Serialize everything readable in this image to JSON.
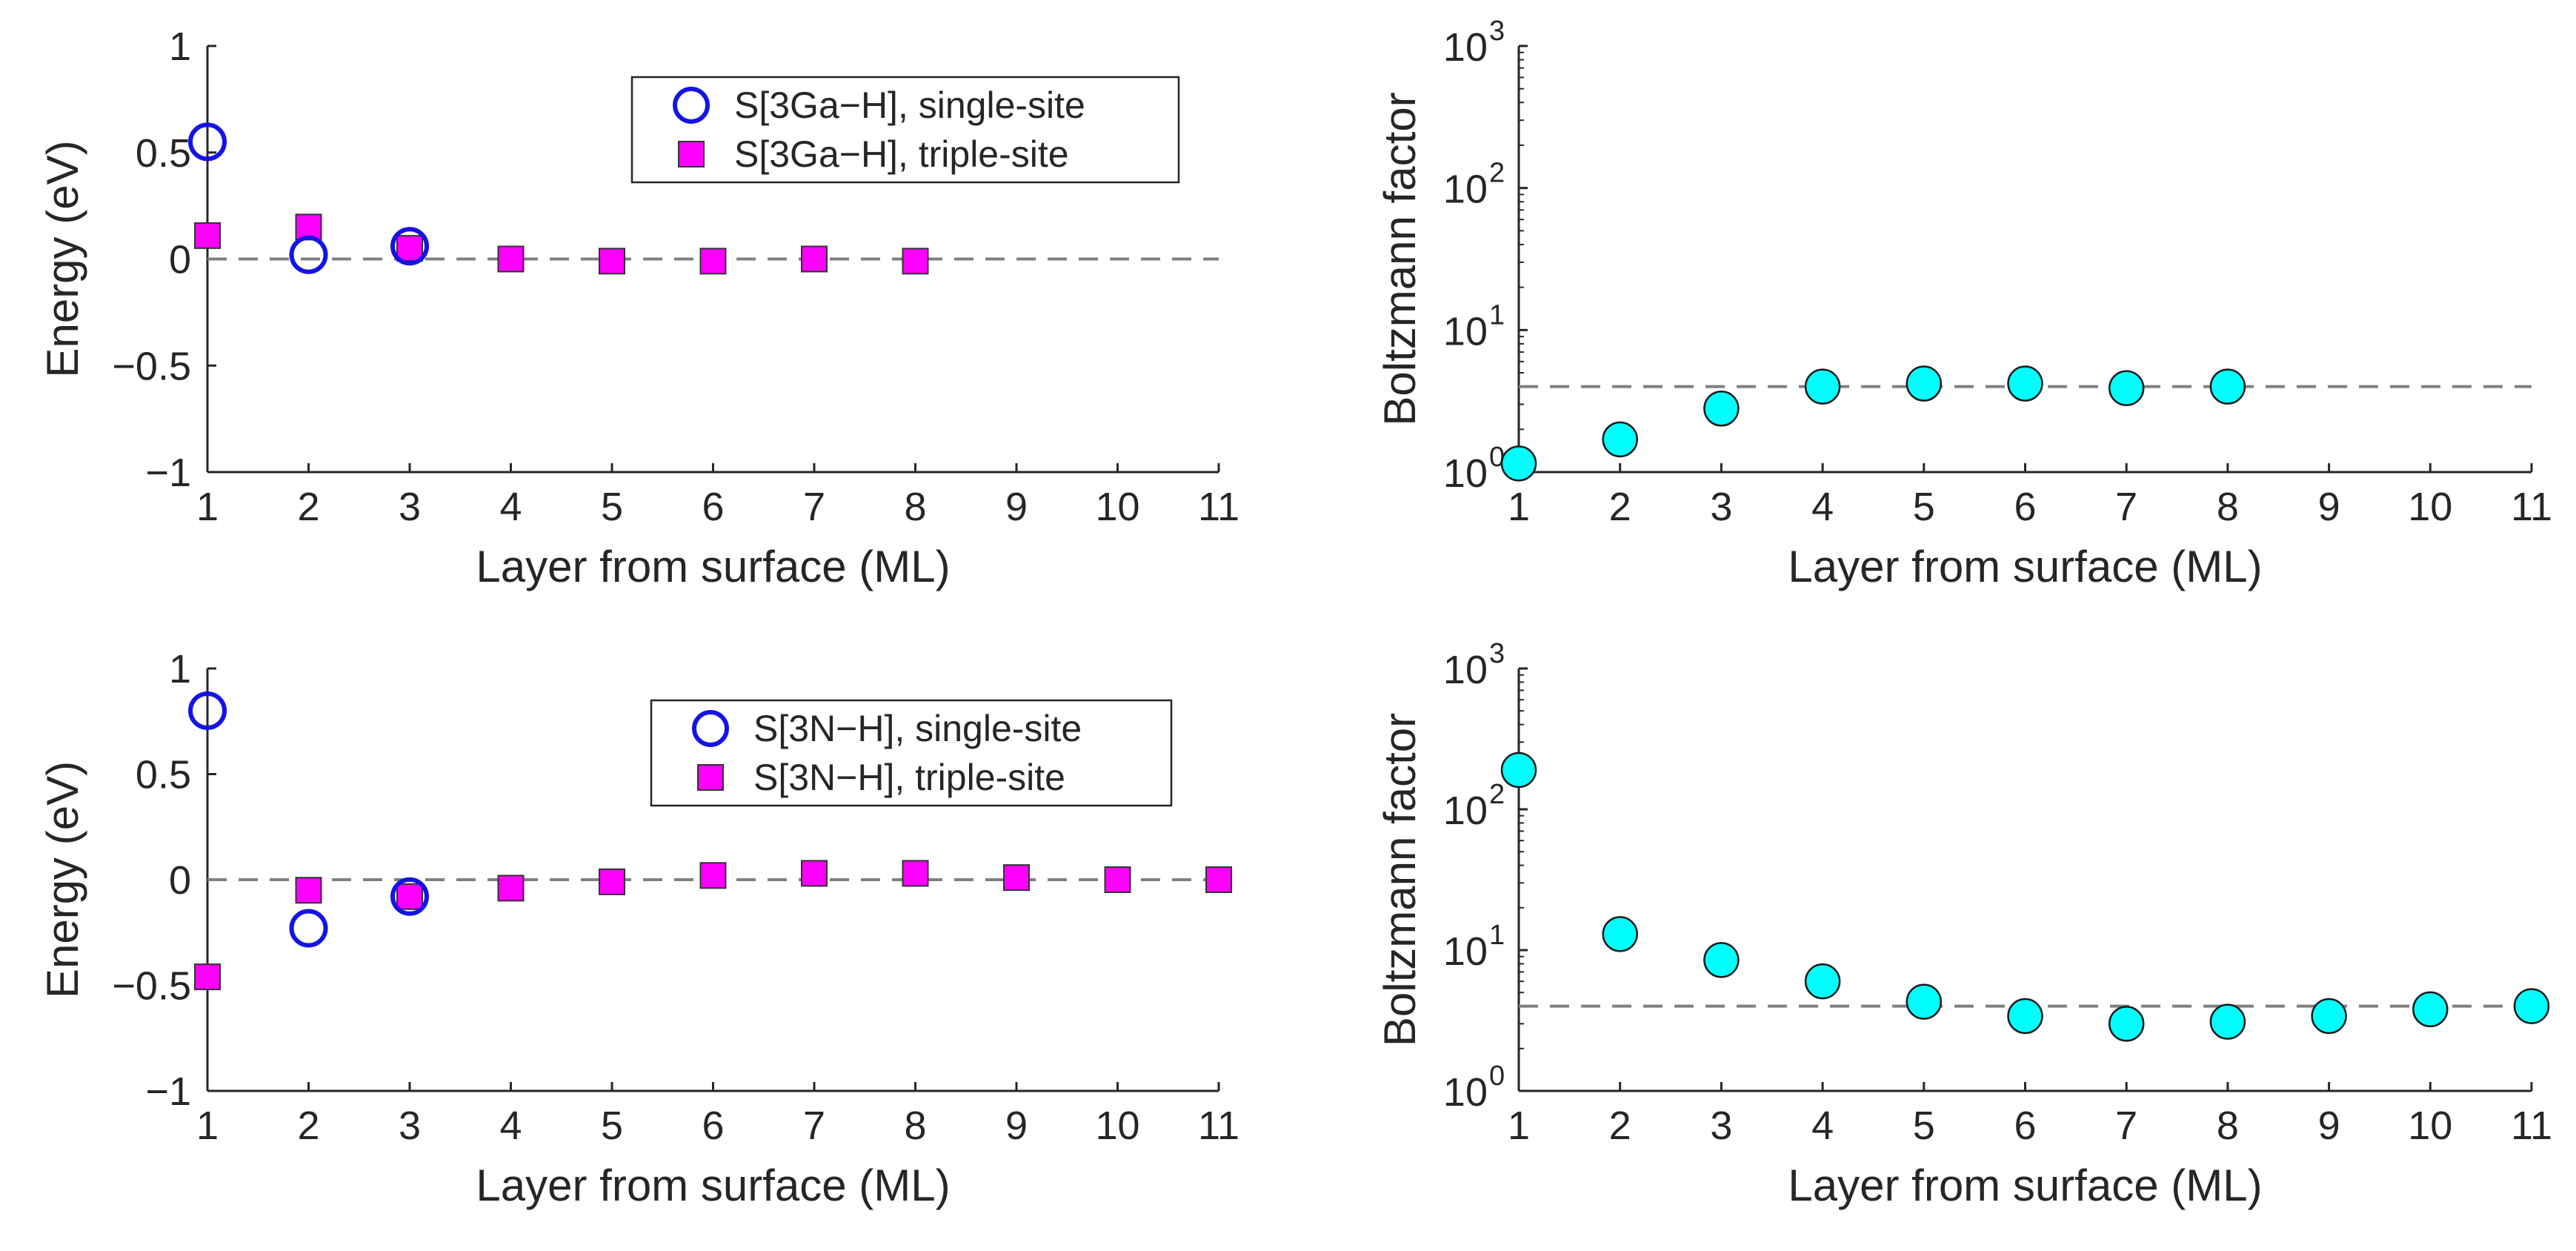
{
  "chart_data": [
    {
      "id": "top-left",
      "type": "scatter",
      "xlabel": "Layer from surface (ML)",
      "ylabel": "Energy (eV)",
      "xlim": [
        1,
        11
      ],
      "ylim": [
        -1,
        1
      ],
      "xticks": [
        "1",
        "2",
        "3",
        "4",
        "5",
        "6",
        "7",
        "8",
        "9",
        "10",
        "11"
      ],
      "yticks": [
        {
          "value": -1,
          "label": "−1"
        },
        {
          "value": -0.5,
          "label": "−0.5"
        },
        {
          "value": 0,
          "label": "0"
        },
        {
          "value": 0.5,
          "label": "0.5"
        },
        {
          "value": 1,
          "label": "1"
        }
      ],
      "reference_line": {
        "value": 0,
        "color": "#808080"
      },
      "legend_position": "top-right",
      "series": [
        {
          "name": "S[3Ga−H], single-site",
          "marker": "open-circle",
          "color": "#1414E6",
          "x": [
            1,
            2,
            3
          ],
          "y": [
            0.55,
            0.02,
            0.06
          ]
        },
        {
          "name": "S[3Ga−H], triple-site",
          "marker": "filled-square",
          "color": "#FF00FF",
          "x": [
            1,
            2,
            3,
            4,
            5,
            6,
            7,
            8
          ],
          "y": [
            0.11,
            0.15,
            0.05,
            0.0,
            -0.01,
            -0.01,
            0.0,
            -0.01
          ]
        }
      ]
    },
    {
      "id": "top-right",
      "type": "scatter",
      "scale": "log",
      "xlabel": "Layer from surface (ML)",
      "ylabel": "Boltzmann factor",
      "xlim": [
        1,
        11
      ],
      "ylim": [
        1,
        1000
      ],
      "xticks": [
        "1",
        "2",
        "3",
        "4",
        "5",
        "6",
        "7",
        "8",
        "9",
        "10",
        "11"
      ],
      "yticks": [
        {
          "value": 1,
          "base": "10",
          "exp": "0"
        },
        {
          "value": 10,
          "base": "10",
          "exp": "1"
        },
        {
          "value": 100,
          "base": "10",
          "exp": "2"
        },
        {
          "value": 1000,
          "base": "10",
          "exp": "3"
        }
      ],
      "reference_line": {
        "value": 4.0,
        "color": "#808080"
      },
      "series": [
        {
          "name": "Boltzmann factor",
          "marker": "filled-circle",
          "color": "#00FFFF",
          "x": [
            1,
            2,
            3,
            4,
            5,
            6,
            7,
            8
          ],
          "y": [
            1.15,
            1.7,
            2.8,
            4.0,
            4.2,
            4.2,
            3.9,
            4.0
          ]
        }
      ]
    },
    {
      "id": "bottom-left",
      "type": "scatter",
      "xlabel": "Layer from surface (ML)",
      "ylabel": "Energy (eV)",
      "xlim": [
        1,
        11
      ],
      "ylim": [
        -1,
        1
      ],
      "xticks": [
        "1",
        "2",
        "3",
        "4",
        "5",
        "6",
        "7",
        "8",
        "9",
        "10",
        "11"
      ],
      "yticks": [
        {
          "value": -1,
          "label": "−1"
        },
        {
          "value": -0.5,
          "label": "−0.5"
        },
        {
          "value": 0,
          "label": "0"
        },
        {
          "value": 0.5,
          "label": "0.5"
        },
        {
          "value": 1,
          "label": "1"
        }
      ],
      "reference_line": {
        "value": 0,
        "color": "#808080"
      },
      "legend_position": "top-right",
      "series": [
        {
          "name": "S[3N−H], single-site",
          "marker": "open-circle",
          "color": "#1414E6",
          "x": [
            1,
            2,
            3
          ],
          "y": [
            0.8,
            -0.23,
            -0.08
          ]
        },
        {
          "name": "S[3N−H], triple-site",
          "marker": "filled-square",
          "color": "#FF00FF",
          "x": [
            1,
            2,
            3,
            4,
            5,
            6,
            7,
            8,
            9,
            10,
            11
          ],
          "y": [
            -0.46,
            -0.05,
            -0.08,
            -0.04,
            -0.01,
            0.02,
            0.03,
            0.03,
            0.01,
            0.0,
            0.0
          ]
        }
      ]
    },
    {
      "id": "bottom-right",
      "type": "scatter",
      "scale": "log",
      "xlabel": "Layer from surface (ML)",
      "ylabel": "Boltzmann factor",
      "xlim": [
        1,
        11
      ],
      "ylim": [
        1,
        1000
      ],
      "xticks": [
        "1",
        "2",
        "3",
        "4",
        "5",
        "6",
        "7",
        "8",
        "9",
        "10",
        "11"
      ],
      "yticks": [
        {
          "value": 1,
          "base": "10",
          "exp": "0"
        },
        {
          "value": 10,
          "base": "10",
          "exp": "1"
        },
        {
          "value": 100,
          "base": "10",
          "exp": "2"
        },
        {
          "value": 1000,
          "base": "10",
          "exp": "3"
        }
      ],
      "reference_line": {
        "value": 4.0,
        "color": "#808080"
      },
      "series": [
        {
          "name": "Boltzmann factor",
          "marker": "filled-circle",
          "color": "#00FFFF",
          "x": [
            1,
            2,
            3,
            4,
            5,
            6,
            7,
            8,
            9,
            10,
            11
          ],
          "y": [
            190,
            13,
            8.5,
            6.0,
            4.3,
            3.4,
            3.0,
            3.1,
            3.4,
            3.8,
            4.0
          ]
        }
      ]
    }
  ]
}
